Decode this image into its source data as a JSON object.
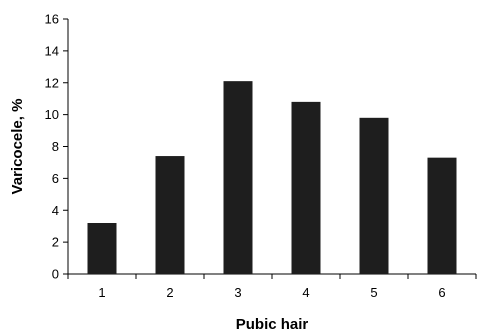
{
  "chart_data": {
    "type": "bar",
    "title": "",
    "xlabel": "Pubic hair",
    "ylabel": "Varicocele, %",
    "categories": [
      "1",
      "2",
      "3",
      "4",
      "5",
      "6"
    ],
    "values": [
      3.2,
      7.4,
      12.1,
      10.8,
      9.8,
      7.3
    ],
    "ylim": [
      0,
      16
    ],
    "yticks": [
      0,
      2,
      4,
      6,
      8,
      10,
      12,
      14,
      16
    ],
    "ytick_labels": [
      "0",
      "2",
      "4",
      "6",
      "8",
      "10",
      "12",
      "14",
      "16"
    ],
    "grid": false,
    "legend": "none",
    "bar_color": "#1e1e1e"
  }
}
